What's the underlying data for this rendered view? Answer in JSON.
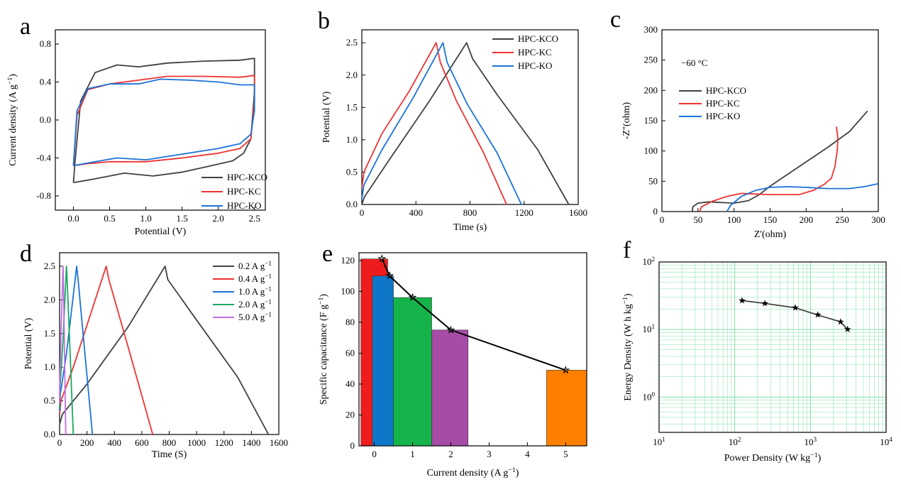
{
  "colors": {
    "gray": "#404040",
    "red": "#ee3333",
    "blue": "#1a73d9",
    "green": "#1aa860",
    "purple": "#c070e0",
    "bar_red": "#ee1c1c",
    "bar_blue": "#0f77c8",
    "bar_green": "#15b44a",
    "bar_purple": "#a64ca6",
    "bar_orange": "#ff8000",
    "grid": "#7fe0a8"
  },
  "chart_data": [
    {
      "panel": "a",
      "type": "line",
      "xlabel": "Potential (V)",
      "ylabel": "Current density (A g^-1)",
      "xlim": [
        -0.25,
        2.65
      ],
      "ylim": [
        -0.95,
        0.95
      ],
      "xticks": [
        "0.0",
        "0.5",
        "1.0",
        "1.5",
        "2.0",
        "2.5"
      ],
      "yticks": [
        "-0.8",
        "-0.4",
        "0.0",
        "0.4",
        "0.8"
      ],
      "legend_position": "bottom-right",
      "series": [
        {
          "name": "HPC-KCO",
          "color_key": "gray",
          "x": [
            0.0,
            0.02,
            0.1,
            0.3,
            0.6,
            0.9,
            1.0,
            1.3,
            1.8,
            2.3,
            2.5,
            2.5,
            2.45,
            2.35,
            2.2,
            1.8,
            1.5,
            1.1,
            0.7,
            0.3,
            0.0,
            0.0
          ],
          "y": [
            -0.66,
            -0.45,
            0.2,
            0.5,
            0.58,
            0.56,
            0.57,
            0.6,
            0.62,
            0.63,
            0.65,
            0.3,
            -0.2,
            -0.35,
            -0.43,
            -0.5,
            -0.55,
            -0.59,
            -0.56,
            -0.62,
            -0.66,
            -0.66
          ]
        },
        {
          "name": "HPC-KC",
          "color_key": "red",
          "x": [
            0.0,
            0.05,
            0.2,
            0.5,
            0.9,
            1.3,
            1.8,
            2.3,
            2.5,
            2.5,
            2.45,
            2.3,
            2.0,
            1.5,
            1.0,
            0.5,
            0.2,
            0.0
          ],
          "y": [
            -0.48,
            0.05,
            0.32,
            0.38,
            0.42,
            0.46,
            0.46,
            0.45,
            0.47,
            0.2,
            -0.2,
            -0.3,
            -0.35,
            -0.4,
            -0.44,
            -0.44,
            -0.46,
            -0.48
          ]
        },
        {
          "name": "HPC-KO",
          "color_key": "blue",
          "x": [
            0.0,
            0.05,
            0.2,
            0.5,
            0.9,
            1.2,
            1.6,
            2.0,
            2.3,
            2.5,
            2.5,
            2.45,
            2.3,
            2.0,
            1.5,
            1.0,
            0.6,
            0.3,
            0.0
          ],
          "y": [
            -0.48,
            0.1,
            0.33,
            0.38,
            0.38,
            0.43,
            0.42,
            0.4,
            0.37,
            0.37,
            0.1,
            -0.15,
            -0.25,
            -0.3,
            -0.36,
            -0.42,
            -0.4,
            -0.44,
            -0.48
          ]
        }
      ]
    },
    {
      "panel": "b",
      "type": "line",
      "xlabel": "Time (s)",
      "ylabel": "Potential (V)",
      "xlim": [
        0,
        1600
      ],
      "ylim": [
        0,
        2.7
      ],
      "xticks": [
        "0",
        "400",
        "800",
        "1200",
        "1600"
      ],
      "yticks": [
        "0.0",
        "0.5",
        "1.0",
        "1.5",
        "2.0",
        "2.5"
      ],
      "legend_position": "top-right",
      "series": [
        {
          "name": "HPC-KCO",
          "color_key": "gray",
          "x": [
            0,
            20,
            200,
            500,
            775,
            820,
            1000,
            1300,
            1530
          ],
          "y": [
            0.0,
            0.12,
            0.68,
            1.6,
            2.5,
            2.25,
            1.7,
            0.85,
            0.0
          ]
        },
        {
          "name": "HPC-KC",
          "color_key": "red",
          "x": [
            0,
            15,
            150,
            350,
            550,
            580,
            700,
            900,
            1070
          ],
          "y": [
            0.25,
            0.5,
            1.1,
            1.75,
            2.5,
            2.2,
            1.6,
            0.8,
            0.0
          ]
        },
        {
          "name": "HPC-KO",
          "color_key": "blue",
          "x": [
            0,
            15,
            150,
            380,
            600,
            630,
            780,
            1000,
            1180
          ],
          "y": [
            0.08,
            0.3,
            0.85,
            1.65,
            2.5,
            2.2,
            1.55,
            0.8,
            0.0
          ]
        }
      ]
    },
    {
      "panel": "c",
      "type": "line",
      "xlabel": "Z'(ohm)",
      "ylabel": "-Z''(ohm)",
      "annotation": "−60 °C",
      "xlim": [
        0,
        300
      ],
      "ylim": [
        0,
        300
      ],
      "xticks": [
        "0",
        "50",
        "100",
        "150",
        "200",
        "250",
        "300"
      ],
      "yticks": [
        "0",
        "50",
        "100",
        "150",
        "200",
        "250",
        "300"
      ],
      "legend_position": "upper-left",
      "series": [
        {
          "name": "HPC-KCO",
          "color_key": "gray",
          "x": [
            42,
            43,
            50,
            65,
            80,
            100,
            120,
            135,
            150,
            170,
            200,
            230,
            260,
            285
          ],
          "y": [
            0,
            8,
            14,
            16,
            15,
            14,
            18,
            28,
            42,
            58,
            82,
            106,
            132,
            166
          ]
        },
        {
          "name": "HPC-KC",
          "color_key": "red",
          "x": [
            52,
            55,
            70,
            90,
            110,
            130,
            150,
            170,
            190,
            210,
            225,
            235,
            240,
            243,
            244,
            242
          ],
          "y": [
            0,
            8,
            17,
            25,
            30,
            29,
            28,
            28,
            28,
            35,
            45,
            55,
            75,
            100,
            120,
            140
          ]
        },
        {
          "name": "HPC-KO",
          "color_key": "blue",
          "x": [
            90,
            95,
            110,
            130,
            150,
            175,
            200,
            230,
            260,
            280,
            300
          ],
          "y": [
            0,
            10,
            25,
            35,
            40,
            41,
            40,
            38,
            38,
            41,
            46
          ]
        }
      ]
    },
    {
      "panel": "d",
      "type": "line",
      "xlabel": "Time (S)",
      "ylabel": "Potential (V)",
      "xlim": [
        0,
        1600
      ],
      "ylim": [
        0,
        2.7
      ],
      "xticks": [
        "0",
        "200",
        "400",
        "600",
        "800",
        "1000",
        "1200",
        "1400",
        "1600"
      ],
      "yticks": [
        "0.0",
        "0.5",
        "1.0",
        "1.5",
        "2.0",
        "2.5"
      ],
      "legend_position": "top-right",
      "series": [
        {
          "name": "0.2 A g^-1",
          "color_key": "gray",
          "x": [
            0,
            20,
            200,
            500,
            770,
            790,
            1000,
            1300,
            1525
          ],
          "y": [
            0.15,
            0.3,
            0.75,
            1.6,
            2.5,
            2.3,
            1.7,
            0.85,
            0.0
          ]
        },
        {
          "name": "0.4 A g^-1",
          "color_key": "red",
          "x": [
            0,
            10,
            100,
            340,
            360,
            500,
            680
          ],
          "y": [
            0.3,
            0.5,
            1.0,
            2.5,
            2.3,
            1.3,
            0.0
          ]
        },
        {
          "name": "1.0 A g^-1",
          "color_key": "blue",
          "x": [
            0,
            5,
            50,
            125,
            135,
            180,
            240
          ],
          "y": [
            0.35,
            0.6,
            1.2,
            2.5,
            2.3,
            1.3,
            0.0
          ]
        },
        {
          "name": "2.0 A g^-1",
          "color_key": "green",
          "x": [
            0,
            3,
            25,
            50,
            55,
            75,
            100
          ],
          "y": [
            0.4,
            0.7,
            1.4,
            2.5,
            2.3,
            1.3,
            0.0
          ]
        },
        {
          "name": "5.0 A g^-1",
          "color_key": "purple",
          "x": [
            0,
            2,
            12,
            25,
            28,
            35,
            45
          ],
          "y": [
            0.45,
            0.8,
            1.6,
            2.5,
            2.3,
            1.3,
            0.0
          ]
        }
      ]
    },
    {
      "panel": "e",
      "type": "bar",
      "xlabel": "Current density (A g^-1)",
      "ylabel": "Specific capacitance (F g^-1)",
      "xlim": [
        -0.4,
        5.55
      ],
      "ylim": [
        0,
        125
      ],
      "xticks": [
        "0",
        "1",
        "2",
        "3",
        "4",
        "5"
      ],
      "yticks": [
        "0",
        "20",
        "40",
        "60",
        "80",
        "100",
        "120"
      ],
      "bars": [
        {
          "x": 0.2,
          "value": 121,
          "color_key": "bar_red"
        },
        {
          "x": 0.4,
          "value": 110,
          "color_key": "bar_blue"
        },
        {
          "x": 1.0,
          "value": 96,
          "color_key": "bar_green"
        },
        {
          "x": 2.0,
          "value": 75,
          "color_key": "bar_purple"
        },
        {
          "x": 5.0,
          "value": 49,
          "color_key": "bar_orange"
        }
      ],
      "line_points": [
        [
          0.2,
          121
        ],
        [
          0.4,
          110
        ],
        [
          1.0,
          96
        ],
        [
          2.0,
          75
        ],
        [
          5.0,
          49
        ]
      ]
    },
    {
      "panel": "f",
      "type": "scatter",
      "xlabel": "Power Density (W kg^-1)",
      "ylabel": "Energy Density (W h kg^-1)",
      "xscale": "log",
      "yscale": "log",
      "xlim": [
        10,
        10000
      ],
      "ylim": [
        0.3,
        100
      ],
      "xticks": [
        "10^1",
        "10^2",
        "10^3",
        "10^4"
      ],
      "yticks": [
        "10^0",
        "10^1",
        "10^2"
      ],
      "grid": true,
      "points": [
        [
          125,
          26.8
        ],
        [
          250,
          24.3
        ],
        [
          630,
          21.0
        ],
        [
          1250,
          16.4
        ],
        [
          2500,
          13.0
        ],
        [
          3100,
          10.0
        ]
      ]
    }
  ]
}
